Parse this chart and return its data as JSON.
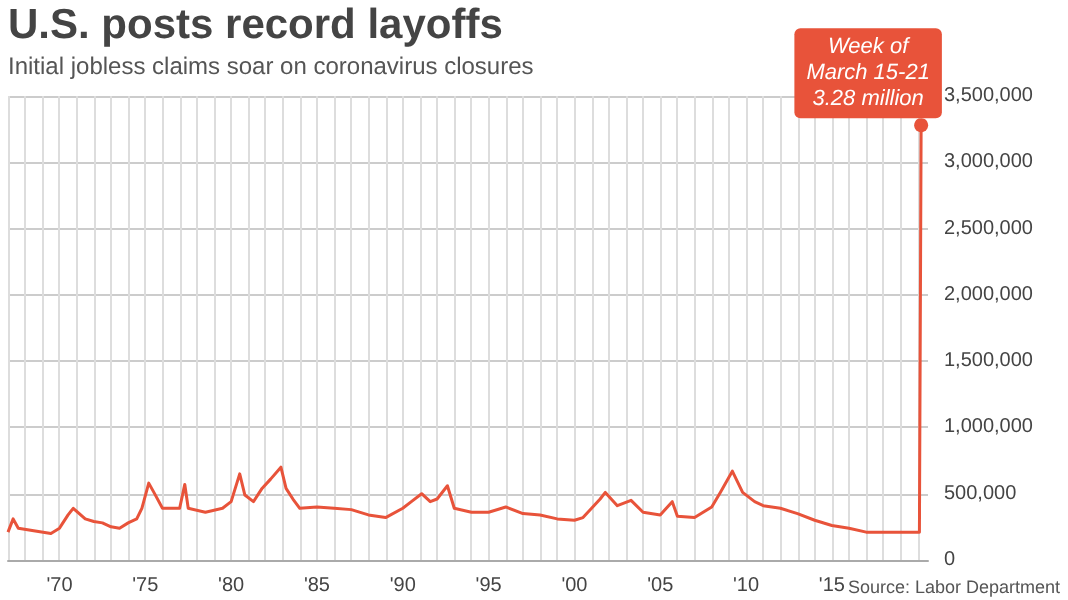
{
  "chart_data": {
    "type": "line",
    "title": "U.S. posts record layoffs",
    "subtitle": "Initial jobless claims soar on coronavirus closures",
    "annotations": [
      {
        "text": "Week of\nMarch 15-21\n3.28 million",
        "x": 2020.2,
        "y": 3280000
      },
      "Source: Labor Department"
    ],
    "series": [
      {
        "color": "#e8533a",
        "x": [
          1967.0,
          1967.3,
          1967.6,
          1968.5,
          1969.5,
          1970.0,
          1970.5,
          1970.8,
          1971.5,
          1972.0,
          1972.5,
          1973.0,
          1973.5,
          1974.0,
          1974.5,
          1974.8,
          1975.2,
          1975.5,
          1976.0,
          1976.5,
          1977.0,
          1977.3,
          1977.5,
          1978.5,
          1979.5,
          1980.0,
          1980.5,
          1980.8,
          1981.3,
          1981.8,
          1982.3,
          1982.9,
          1983.2,
          1983.6,
          1984.0,
          1985.0,
          1986.0,
          1987.0,
          1988.0,
          1989.0,
          1990.0,
          1990.5,
          1991.1,
          1991.6,
          1992.0,
          1992.6,
          1993.0,
          1994.0,
          1995.0,
          1996.0,
          1997.0,
          1998.0,
          1999.0,
          2000.0,
          2000.5,
          2001.0,
          2001.5,
          2001.8,
          2002.5,
          2003.3,
          2004.0,
          2005.0,
          2005.7,
          2006.0,
          2007.0,
          2008.0,
          2008.5,
          2009.2,
          2009.8,
          2010.5,
          2011.0,
          2012.0,
          2013.0,
          2014.0,
          2015.0,
          2016.0,
          2017.0,
          2018.0,
          2019.0,
          2020.1,
          2020.2
        ],
        "values": [
          210000,
          310000,
          240000,
          220000,
          200000,
          240000,
          340000,
          390000,
          310000,
          290000,
          280000,
          250000,
          240000,
          280000,
          310000,
          390000,
          580000,
          510000,
          390000,
          390000,
          390000,
          570000,
          390000,
          360000,
          390000,
          440000,
          650000,
          490000,
          440000,
          540000,
          610000,
          700000,
          540000,
          460000,
          390000,
          400000,
          390000,
          380000,
          340000,
          320000,
          390000,
          440000,
          500000,
          440000,
          460000,
          560000,
          390000,
          360000,
          360000,
          400000,
          350000,
          340000,
          310000,
          300000,
          320000,
          390000,
          460000,
          510000,
          410000,
          450000,
          360000,
          340000,
          440000,
          330000,
          320000,
          400000,
          510000,
          670000,
          510000,
          440000,
          410000,
          390000,
          350000,
          300000,
          260000,
          240000,
          210000,
          210000,
          210000,
          210000,
          3280000
        ]
      }
    ],
    "xlim": [
      1967,
      2020.6
    ],
    "xticks": [
      {
        "value": 1967,
        "label": null
      },
      {
        "value": 1968,
        "label": null
      },
      {
        "value": 1969,
        "label": null
      },
      {
        "value": 1970,
        "label": "'70"
      },
      {
        "value": 1971,
        "label": null
      },
      {
        "value": 1972,
        "label": null
      },
      {
        "value": 1973,
        "label": null
      },
      {
        "value": 1974,
        "label": null
      },
      {
        "value": 1975,
        "label": "'75"
      },
      {
        "value": 1976,
        "label": null
      },
      {
        "value": 1977,
        "label": null
      },
      {
        "value": 1978,
        "label": null
      },
      {
        "value": 1979,
        "label": null
      },
      {
        "value": 1980,
        "label": "'80"
      },
      {
        "value": 1981,
        "label": null
      },
      {
        "value": 1982,
        "label": null
      },
      {
        "value": 1983,
        "label": null
      },
      {
        "value": 1984,
        "label": null
      },
      {
        "value": 1985,
        "label": "'85"
      },
      {
        "value": 1986,
        "label": null
      },
      {
        "value": 1987,
        "label": null
      },
      {
        "value": 1988,
        "label": null
      },
      {
        "value": 1989,
        "label": null
      },
      {
        "value": 1990,
        "label": "'90"
      },
      {
        "value": 1991,
        "label": null
      },
      {
        "value": 1992,
        "label": null
      },
      {
        "value": 1993,
        "label": null
      },
      {
        "value": 1994,
        "label": null
      },
      {
        "value": 1995,
        "label": "'95"
      },
      {
        "value": 1996,
        "label": null
      },
      {
        "value": 1997,
        "label": null
      },
      {
        "value": 1998,
        "label": null
      },
      {
        "value": 1999,
        "label": null
      },
      {
        "value": 2000,
        "label": "'00"
      },
      {
        "value": 2001,
        "label": null
      },
      {
        "value": 2002,
        "label": null
      },
      {
        "value": 2003,
        "label": null
      },
      {
        "value": 2004,
        "label": null
      },
      {
        "value": 2005,
        "label": "'05"
      },
      {
        "value": 2006,
        "label": null
      },
      {
        "value": 2007,
        "label": null
      },
      {
        "value": 2008,
        "label": null
      },
      {
        "value": 2009,
        "label": null
      },
      {
        "value": 2010,
        "label": "'10"
      },
      {
        "value": 2011,
        "label": null
      },
      {
        "value": 2012,
        "label": null
      },
      {
        "value": 2013,
        "label": null
      },
      {
        "value": 2014,
        "label": null
      },
      {
        "value": 2015,
        "label": "'15"
      },
      {
        "value": 2016,
        "label": null
      },
      {
        "value": 2017,
        "label": null
      },
      {
        "value": 2018,
        "label": null
      },
      {
        "value": 2019,
        "label": null
      },
      {
        "value": 2020,
        "label": null
      }
    ],
    "ylim": [
      0,
      3500000
    ],
    "yticks": [
      0,
      {
        "value": 500000,
        "label": "500,000"
      },
      {
        "value": 1000000,
        "label": "1,000,000"
      },
      {
        "value": 1500000,
        "label": "1,500,000"
      },
      {
        "value": 2000000,
        "label": "2,000,000"
      },
      {
        "value": 2500000,
        "label": "2,500,000"
      },
      {
        "value": 3000000,
        "label": "3,000,000"
      },
      {
        "value": 3500000,
        "label": "3,500,000"
      }
    ],
    "grid": true
  }
}
